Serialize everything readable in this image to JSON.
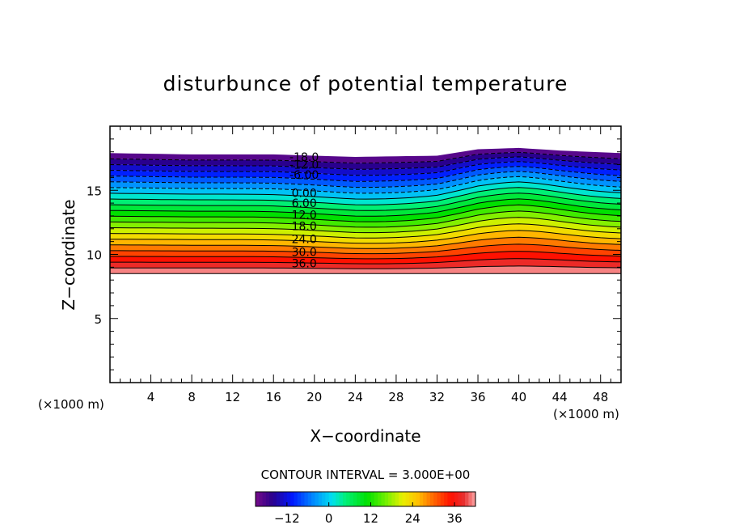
{
  "chart_data": {
    "type": "contour",
    "title": "disturbunce of potential temperature",
    "xlabel": "X−coordinate",
    "ylabel": "Z−coordinate",
    "x_unit_left": "(×1000 m)",
    "x_unit_right": "(×1000 m)",
    "xlim": [
      0,
      50
    ],
    "ylim": [
      0,
      20
    ],
    "x_ticks": [
      4,
      8,
      12,
      16,
      20,
      24,
      28,
      32,
      36,
      40,
      44,
      48
    ],
    "y_ticks": [
      5,
      10,
      15
    ],
    "contour_interval_text": "CONTOUR INTERVAL = 3.000E+00",
    "contour_interval": 3,
    "value_range": [
      -21,
      42
    ],
    "field_bottom_z": 8.5,
    "field_top_profile": [
      {
        "x": 0,
        "z": 17.9
      },
      {
        "x": 8,
        "z": 17.8
      },
      {
        "x": 16,
        "z": 17.8
      },
      {
        "x": 24,
        "z": 17.6
      },
      {
        "x": 32,
        "z": 17.7
      },
      {
        "x": 36,
        "z": 18.2
      },
      {
        "x": 40,
        "z": 18.3
      },
      {
        "x": 44,
        "z": 18.1
      },
      {
        "x": 50,
        "z": 17.9
      }
    ],
    "contour_labels": [
      "-18.0",
      "-12.0",
      "-6.00",
      "0.00",
      "6.00",
      "12.0",
      "18.0",
      "24.0",
      "30.0",
      "36.0"
    ],
    "contour_label_z": [
      17.6,
      17.0,
      16.2,
      14.8,
      14.0,
      13.1,
      12.2,
      11.2,
      10.2,
      9.3
    ],
    "colorbar_ticks": [
      "−12",
      "0",
      "12",
      "24",
      "36"
    ],
    "colorbar_tick_values": [
      -12,
      0,
      12,
      24,
      36
    ]
  }
}
